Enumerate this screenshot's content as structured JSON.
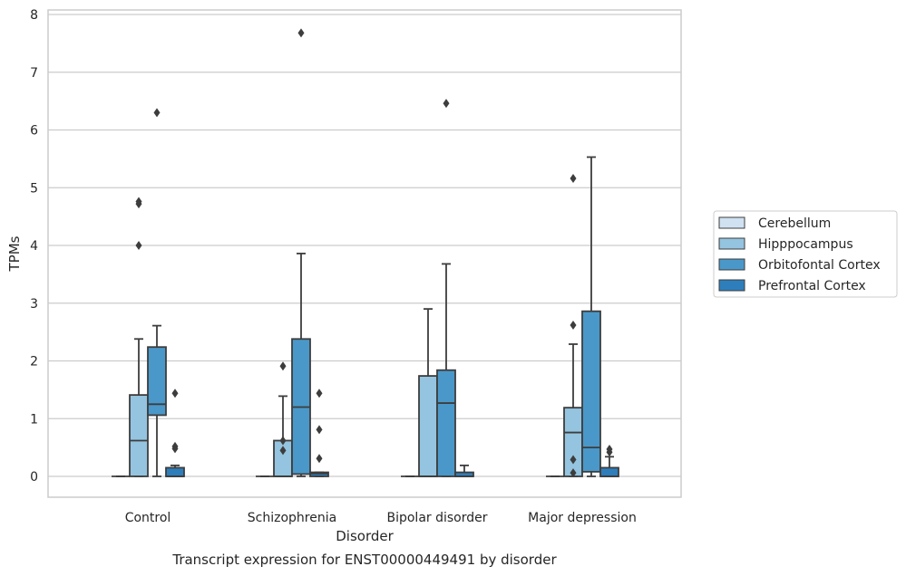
{
  "chart_data": {
    "type": "box",
    "title": "",
    "caption": "Transcript expression for ENST00000449491 by disorder",
    "xlabel": "Disorder",
    "ylabel": "TPMs",
    "ylim": [
      -0.37,
      8.1
    ],
    "yticks": [
      0,
      1,
      2,
      3,
      4,
      5,
      6,
      7,
      8
    ],
    "grid": true,
    "legend_position": "right",
    "categories": [
      "Control",
      "Schizophrenia",
      "Bipolar disorder",
      "Major depression"
    ],
    "series": [
      {
        "name": "Cerebellum",
        "color": "#d0e1f2",
        "boxes": [
          {
            "q1": 0,
            "median": 0,
            "q3": 0,
            "whisker_low": 0,
            "whisker_high": 0,
            "outliers": []
          },
          {
            "q1": 0,
            "median": 0,
            "q3": 0,
            "whisker_low": 0,
            "whisker_high": 0,
            "outliers": []
          },
          {
            "q1": 0,
            "median": 0,
            "q3": 0,
            "whisker_low": 0,
            "whisker_high": 0,
            "outliers": []
          },
          {
            "q1": 0,
            "median": 0,
            "q3": 0,
            "whisker_low": 0,
            "whisker_high": 0,
            "outliers": []
          }
        ]
      },
      {
        "name": "Hipppocampus",
        "color": "#94c4df",
        "boxes": [
          {
            "q1": 0,
            "median": 0.62,
            "q3": 1.41,
            "whisker_low": 0,
            "whisker_high": 2.38,
            "outliers": [
              4.72,
              4.76,
              4.0
            ]
          },
          {
            "q1": 0,
            "median": 0,
            "q3": 0.62,
            "whisker_low": 0,
            "whisker_high": 1.39,
            "outliers": [
              0.45,
              0.62,
              1.91
            ]
          },
          {
            "q1": 0,
            "median": 0,
            "q3": 1.74,
            "whisker_low": 0,
            "whisker_high": 2.9,
            "outliers": []
          },
          {
            "q1": 0,
            "median": 0.76,
            "q3": 1.19,
            "whisker_low": 0,
            "whisker_high": 2.29,
            "outliers": [
              0.06,
              0.29,
              2.62,
              5.16
            ]
          }
        ]
      },
      {
        "name": "Orbitofontal Cortex",
        "color": "#4a98c9",
        "boxes": [
          {
            "q1": 1.06,
            "median": 1.25,
            "q3": 2.24,
            "whisker_low": 0,
            "whisker_high": 2.61,
            "outliers": [
              6.3
            ]
          },
          {
            "q1": 0.04,
            "median": 1.2,
            "q3": 2.38,
            "whisker_low": 0,
            "whisker_high": 3.86,
            "outliers": [
              7.68
            ]
          },
          {
            "q1": 0,
            "median": 1.27,
            "q3": 1.84,
            "whisker_low": 0,
            "whisker_high": 3.68,
            "outliers": [
              6.46
            ]
          },
          {
            "q1": 0.08,
            "median": 0.5,
            "q3": 2.86,
            "whisker_low": 0,
            "whisker_high": 5.53,
            "outliers": []
          }
        ]
      },
      {
        "name": "Prefrontal Cortex",
        "color": "#2e7ebc",
        "boxes": [
          {
            "q1": 0,
            "median": 0,
            "q3": 0.15,
            "whisker_low": 0,
            "whisker_high": 0.19,
            "outliers": [
              0.48,
              0.52,
              1.44
            ]
          },
          {
            "q1": 0,
            "median": 0.05,
            "q3": 0.07,
            "whisker_low": 0,
            "whisker_high": 0.07,
            "outliers": [
              0.31,
              0.81,
              1.44
            ]
          },
          {
            "q1": 0,
            "median": 0,
            "q3": 0.07,
            "whisker_low": 0,
            "whisker_high": 0.19,
            "outliers": []
          },
          {
            "q1": 0,
            "median": 0,
            "q3": 0.15,
            "whisker_low": 0,
            "whisker_high": 0.34,
            "outliers": [
              0.42,
              0.47
            ]
          }
        ]
      }
    ]
  }
}
